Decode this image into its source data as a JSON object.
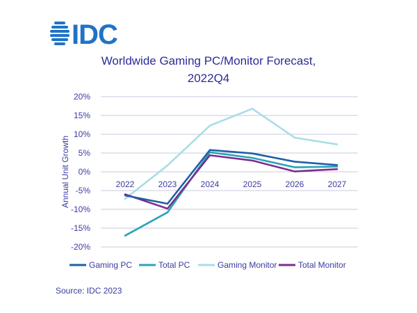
{
  "logo": {
    "text": "IDC",
    "color": "#1f73c6"
  },
  "source": "Source: IDC 2023",
  "chart_data": {
    "type": "line",
    "title_lines": [
      "Worldwide Gaming PC/Monitor Forecast,",
      "2022Q4"
    ],
    "xlabel": "",
    "ylabel": "Annual Unit Growth",
    "x": [
      "2022",
      "2023",
      "2024",
      "2025",
      "2026",
      "2027"
    ],
    "ylim": [
      -20,
      20
    ],
    "yticks": [
      20,
      15,
      10,
      5,
      0,
      -5,
      -10,
      -15,
      -20
    ],
    "ytick_labels": [
      "20%",
      "15%",
      "10%",
      "5%",
      "0%",
      "-5%",
      "-10%",
      "-15%",
      "-20%"
    ],
    "grid": true,
    "legend_position": "bottom",
    "series": [
      {
        "name": "Gaming PC",
        "color": "#1f5fa8",
        "values": [
          -6.3,
          -8.5,
          5.8,
          4.9,
          2.7,
          1.8
        ]
      },
      {
        "name": "Total PC",
        "color": "#2aa3b8",
        "values": [
          -17.0,
          -10.8,
          5.2,
          3.7,
          1.2,
          1.4
        ]
      },
      {
        "name": "Gaming Monitor",
        "color": "#a8dde6",
        "values": [
          -7.2,
          1.7,
          12.3,
          16.8,
          9.1,
          7.3
        ]
      },
      {
        "name": "Total Monitor",
        "color": "#7b2d8e",
        "values": [
          -6.0,
          -9.8,
          4.4,
          3.0,
          0.1,
          0.7
        ]
      }
    ]
  }
}
